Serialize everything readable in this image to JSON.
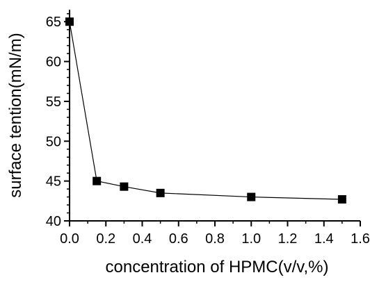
{
  "chart_data": {
    "type": "line",
    "xlabel": "concentration of HPMC(v/v,%)",
    "ylabel": "surface tention(mN/m)",
    "xlim": [
      0.0,
      1.6
    ],
    "ylim": [
      40,
      66.5
    ],
    "x_ticks": [
      0.0,
      0.2,
      0.4,
      0.6,
      0.8,
      1.0,
      1.2,
      1.4,
      1.6
    ],
    "x_tick_labels": [
      "0.0",
      "0.2",
      "0.4",
      "0.6",
      "0.8",
      "1.0",
      "1.2",
      "1.4",
      "1.6"
    ],
    "y_ticks": [
      40,
      45,
      50,
      55,
      60,
      65
    ],
    "y_tick_labels": [
      "40",
      "45",
      "50",
      "55",
      "60",
      "65"
    ],
    "marker": "square",
    "color": "#000000",
    "grid": false,
    "series": [
      {
        "x": [
          0.0,
          0.15,
          0.3,
          0.5,
          1.0,
          1.5
        ],
        "y": [
          65.0,
          45.0,
          44.3,
          43.5,
          43.0,
          42.7
        ]
      }
    ]
  }
}
